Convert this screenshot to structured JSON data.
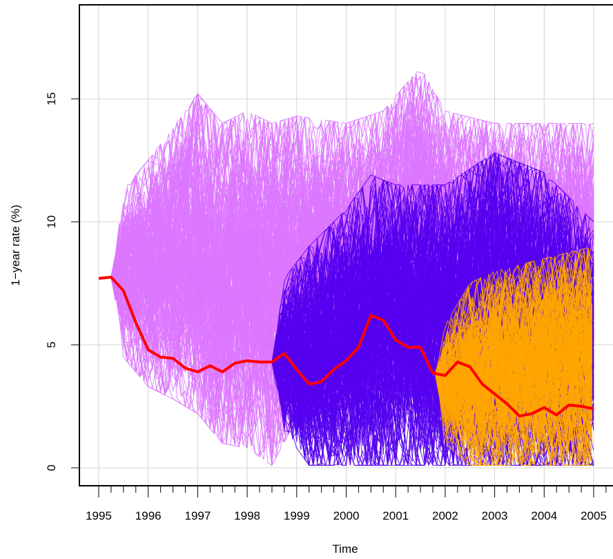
{
  "chart_data": {
    "type": "line",
    "xlabel": "Time",
    "ylabel": "1−year rate (%)",
    "xlim": [
      1995,
      2005.5
    ],
    "ylim": [
      0,
      19
    ],
    "grid": true,
    "x_ticks": [
      1995,
      1996,
      1997,
      1998,
      1999,
      2000,
      2001,
      2002,
      2003,
      2004,
      2005
    ],
    "y_ticks": [
      0,
      5,
      10,
      15
    ],
    "series": [
      {
        "color": "#dd77ff",
        "start": 1995.25,
        "end": 2005,
        "start_value": 7.75,
        "band": [
          [
            1995.25,
            7.75,
            7.75
          ],
          [
            1995.5,
            4.5,
            11.3
          ],
          [
            1996,
            3.3,
            12.5
          ],
          [
            1996.5,
            2.8,
            13.8
          ],
          [
            1997,
            2.2,
            15.2
          ],
          [
            1997.5,
            1.0,
            14.0
          ],
          [
            1998,
            0.8,
            14.5
          ],
          [
            1998.5,
            0.1,
            14.0
          ],
          [
            1999,
            2.0,
            14.3
          ],
          [
            2000,
            2.5,
            14.0
          ],
          [
            2000.75,
            3.0,
            14.5
          ],
          [
            2001.5,
            3.0,
            16.3
          ],
          [
            2002,
            3.0,
            14.5
          ],
          [
            2003,
            3.0,
            14.0
          ],
          [
            2004,
            3.0,
            14.0
          ],
          [
            2005,
            3.0,
            14.0
          ]
        ]
      },
      {
        "color": "#5500ee",
        "start": 1998.5,
        "end": 2005,
        "start_value": 4.3,
        "band": [
          [
            1998.5,
            4.3,
            4.3
          ],
          [
            1998.75,
            1.5,
            7.7
          ],
          [
            1999.25,
            0.1,
            9.0
          ],
          [
            2000,
            0.1,
            10.5
          ],
          [
            2000.5,
            0.1,
            11.9
          ],
          [
            2001,
            0.1,
            11.5
          ],
          [
            2002,
            0.1,
            11.5
          ],
          [
            2003,
            0.1,
            12.8
          ],
          [
            2004,
            0.1,
            12.0
          ],
          [
            2005,
            0.1,
            10.0
          ]
        ]
      },
      {
        "color": "#ffa500",
        "start": 2001.8,
        "end": 2005,
        "start_value": 3.8,
        "band": [
          [
            2001.8,
            3.8,
            3.8
          ],
          [
            2002,
            1.0,
            5.8
          ],
          [
            2002.5,
            0.1,
            7.5
          ],
          [
            2003,
            0.1,
            8.0
          ],
          [
            2004,
            0.1,
            8.5
          ],
          [
            2005,
            0.1,
            9.0
          ]
        ]
      },
      {
        "color": "#ff0000",
        "x": [
          1995,
          1995.25,
          1995.5,
          1995.75,
          1996,
          1996.25,
          1996.5,
          1996.75,
          1997,
          1997.25,
          1997.5,
          1997.75,
          1998,
          1998.25,
          1998.5,
          1998.75,
          1999,
          1999.25,
          1999.5,
          1999.75,
          2000,
          2000.25,
          2000.5,
          2000.75,
          2001,
          2001.25,
          2001.5,
          2001.75,
          2002,
          2002.25,
          2002.5,
          2002.75,
          2003,
          2003.25,
          2003.5,
          2003.75,
          2004,
          2004.25,
          2004.5,
          2004.75,
          2005
        ],
        "values": [
          7.7,
          7.75,
          7.2,
          5.9,
          4.8,
          4.5,
          4.45,
          4.05,
          3.9,
          4.15,
          3.9,
          4.25,
          4.35,
          4.3,
          4.3,
          4.65,
          4.0,
          3.4,
          3.5,
          4.0,
          4.35,
          4.9,
          6.2,
          6.0,
          5.2,
          4.9,
          4.9,
          3.85,
          3.75,
          4.3,
          4.1,
          3.4,
          3.0,
          2.6,
          2.1,
          2.2,
          2.45,
          2.15,
          2.55,
          2.5,
          2.4
        ]
      }
    ]
  }
}
